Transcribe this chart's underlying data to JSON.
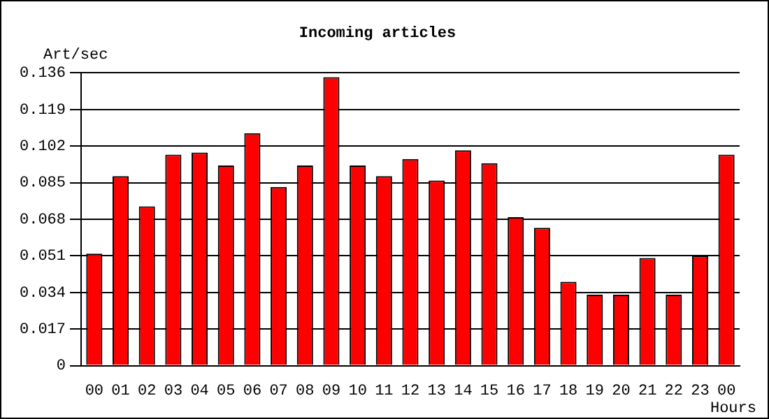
{
  "chart_data": {
    "type": "bar",
    "title": "Incoming articles",
    "ylabel": "Art/sec",
    "xlabel": "Hours",
    "categories": [
      "00",
      "01",
      "02",
      "03",
      "04",
      "05",
      "06",
      "07",
      "08",
      "09",
      "10",
      "11",
      "12",
      "13",
      "14",
      "15",
      "16",
      "17",
      "18",
      "19",
      "20",
      "21",
      "22",
      "23",
      "00"
    ],
    "values": [
      0.052,
      0.088,
      0.074,
      0.098,
      0.099,
      0.093,
      0.108,
      0.083,
      0.093,
      0.134,
      0.093,
      0.088,
      0.096,
      0.086,
      0.1,
      0.094,
      0.069,
      0.064,
      0.039,
      0.033,
      0.033,
      0.05,
      0.033,
      0.051,
      0.098
    ],
    "color": "#ff0000",
    "ylim": [
      0,
      0.136
    ],
    "yticks": [
      0,
      0.017,
      0.034,
      0.051,
      0.068,
      0.085,
      0.102,
      0.119,
      0.136
    ],
    "grid": "y",
    "legend": false
  }
}
